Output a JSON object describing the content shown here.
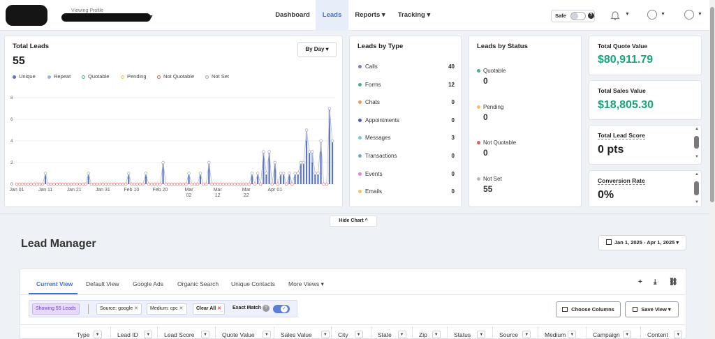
{
  "header": {
    "profile_label": "Viewing Profile",
    "nav": [
      {
        "label": "Dashboard"
      },
      {
        "label": "Leads"
      },
      {
        "label": "Reports ▾"
      },
      {
        "label": "Tracking ▾"
      }
    ],
    "safe_label": "Safe",
    "safe_help": "?"
  },
  "total_leads": {
    "title": "Total Leads",
    "value": "55",
    "period_button": "By Day ▾",
    "legend": [
      "Unique",
      "Repeat",
      "Quotable",
      "Pending",
      "Not Quotable",
      "Not Set"
    ]
  },
  "chart_data": {
    "type": "bar",
    "y_ticks": [
      "8",
      "6",
      "4",
      "2",
      "0"
    ],
    "ylim": [
      0,
      8
    ],
    "x_tick_labels": [
      "Jan 01",
      "Jan 11",
      "Jan 21",
      "Jan 31",
      "Feb 10",
      "Feb 20",
      "Mar 02",
      "Mar 12",
      "Mar 22",
      "Apr 01"
    ],
    "series": [
      {
        "name": "Unique",
        "values": [
          0,
          0,
          0,
          0,
          0,
          0,
          0,
          0,
          0,
          0,
          1,
          0,
          0,
          0,
          0,
          0,
          0,
          0,
          0,
          0,
          0,
          0,
          0,
          0,
          0,
          1,
          0,
          0,
          0,
          0,
          0,
          0,
          0,
          0,
          0,
          0,
          0,
          0,
          0,
          1,
          0,
          0,
          0,
          0,
          0,
          1,
          0,
          0,
          0,
          0,
          0,
          2,
          0,
          0,
          0,
          0,
          0,
          0,
          0,
          0,
          1,
          0,
          0,
          0,
          1,
          0,
          0,
          2,
          0,
          0,
          0,
          0,
          0,
          0,
          0,
          0,
          0,
          0,
          0,
          0,
          0,
          0,
          1,
          0,
          1,
          0,
          3,
          1,
          3,
          0,
          2,
          0,
          1,
          1,
          0,
          1,
          0,
          1,
          1,
          2,
          2,
          4,
          3,
          2,
          1,
          1,
          3,
          0,
          0,
          7,
          4
        ]
      },
      {
        "name": "Repeat",
        "values": [
          0,
          0,
          0,
          0,
          0,
          0,
          0,
          0,
          0,
          0,
          0,
          0,
          0,
          0,
          0,
          0,
          0,
          0,
          0,
          0,
          0,
          0,
          0,
          0,
          0,
          0,
          0,
          0,
          0,
          0,
          0,
          0,
          0,
          0,
          0,
          0,
          0,
          0,
          0,
          0,
          0,
          0,
          0,
          0,
          0,
          0,
          0,
          0,
          0,
          0,
          0,
          0,
          0,
          0,
          0,
          0,
          0,
          0,
          0,
          0,
          0,
          0,
          0,
          0,
          0,
          0,
          0,
          0,
          0,
          0,
          0,
          0,
          0,
          0,
          0,
          0,
          0,
          0,
          0,
          0,
          0,
          0,
          0,
          0,
          0,
          0,
          0,
          0,
          0,
          0,
          0,
          0,
          0,
          0,
          0,
          0,
          0,
          0,
          0,
          0,
          0,
          1,
          0,
          1,
          0,
          0,
          1,
          0,
          0,
          0,
          0
        ]
      }
    ]
  },
  "leads_by_type": {
    "title": "Leads by Type",
    "items": [
      {
        "label": "Calls",
        "value": "40",
        "color": "#6f7fc9"
      },
      {
        "label": "Forms",
        "value": "12",
        "color": "#3fb38b"
      },
      {
        "label": "Chats",
        "value": "0",
        "color": "#f39a5b"
      },
      {
        "label": "Appointments",
        "value": "0",
        "color": "#4a5cc9"
      },
      {
        "label": "Messages",
        "value": "3",
        "color": "#6fcfd8"
      },
      {
        "label": "Transactions",
        "value": "0",
        "color": "#7a9fd1"
      },
      {
        "label": "Events",
        "value": "0",
        "color": "#d78ad9"
      },
      {
        "label": "Emails",
        "value": "0",
        "color": "#f3c25b"
      }
    ]
  },
  "leads_by_status": {
    "title": "Leads by Status",
    "items": [
      {
        "label": "Quotable",
        "value": "0",
        "color": "#3fb38b"
      },
      {
        "label": "Pending",
        "value": "0",
        "color": "#f3c25b"
      },
      {
        "label": "Not Quotable",
        "value": "0",
        "color": "#e85a5a"
      },
      {
        "label": "Not Set",
        "value": "55",
        "color": "#b5b8bd"
      }
    ]
  },
  "kpis": {
    "quote_title": "Total Quote Value",
    "quote_value": "$80,911.79",
    "sales_title": "Total Sales Value",
    "sales_value": "$18,805.30",
    "score_title": "Total Lead Score",
    "score_value": "0 pts",
    "conversion_title": "Conversion Rate",
    "conversion_value": "0%"
  },
  "hide_chart": "Hide Chart ^",
  "lead_manager": {
    "title": "Lead Manager",
    "date_range": "Jan 1, 2025 - Apr 1, 2025 ▾",
    "tabs": [
      "Current View",
      "Default View",
      "Google Ads",
      "Organic Search",
      "Unique Contacts",
      "More Views ▾"
    ],
    "showing": "Showing 55 Leads",
    "filters": [
      "Source: google",
      "Medium: cpc"
    ],
    "clear_all": "Clear All",
    "exact_match": "Exact Match",
    "choose_columns": "Choose Columns",
    "save_view": "Save View ▾",
    "columns": [
      "Type",
      "Lead ID",
      "Lead Score",
      "Quote Value",
      "Sales Value",
      "City",
      "State",
      "Zip",
      "Status",
      "Source",
      "Medium",
      "Campaign",
      "Content"
    ]
  }
}
